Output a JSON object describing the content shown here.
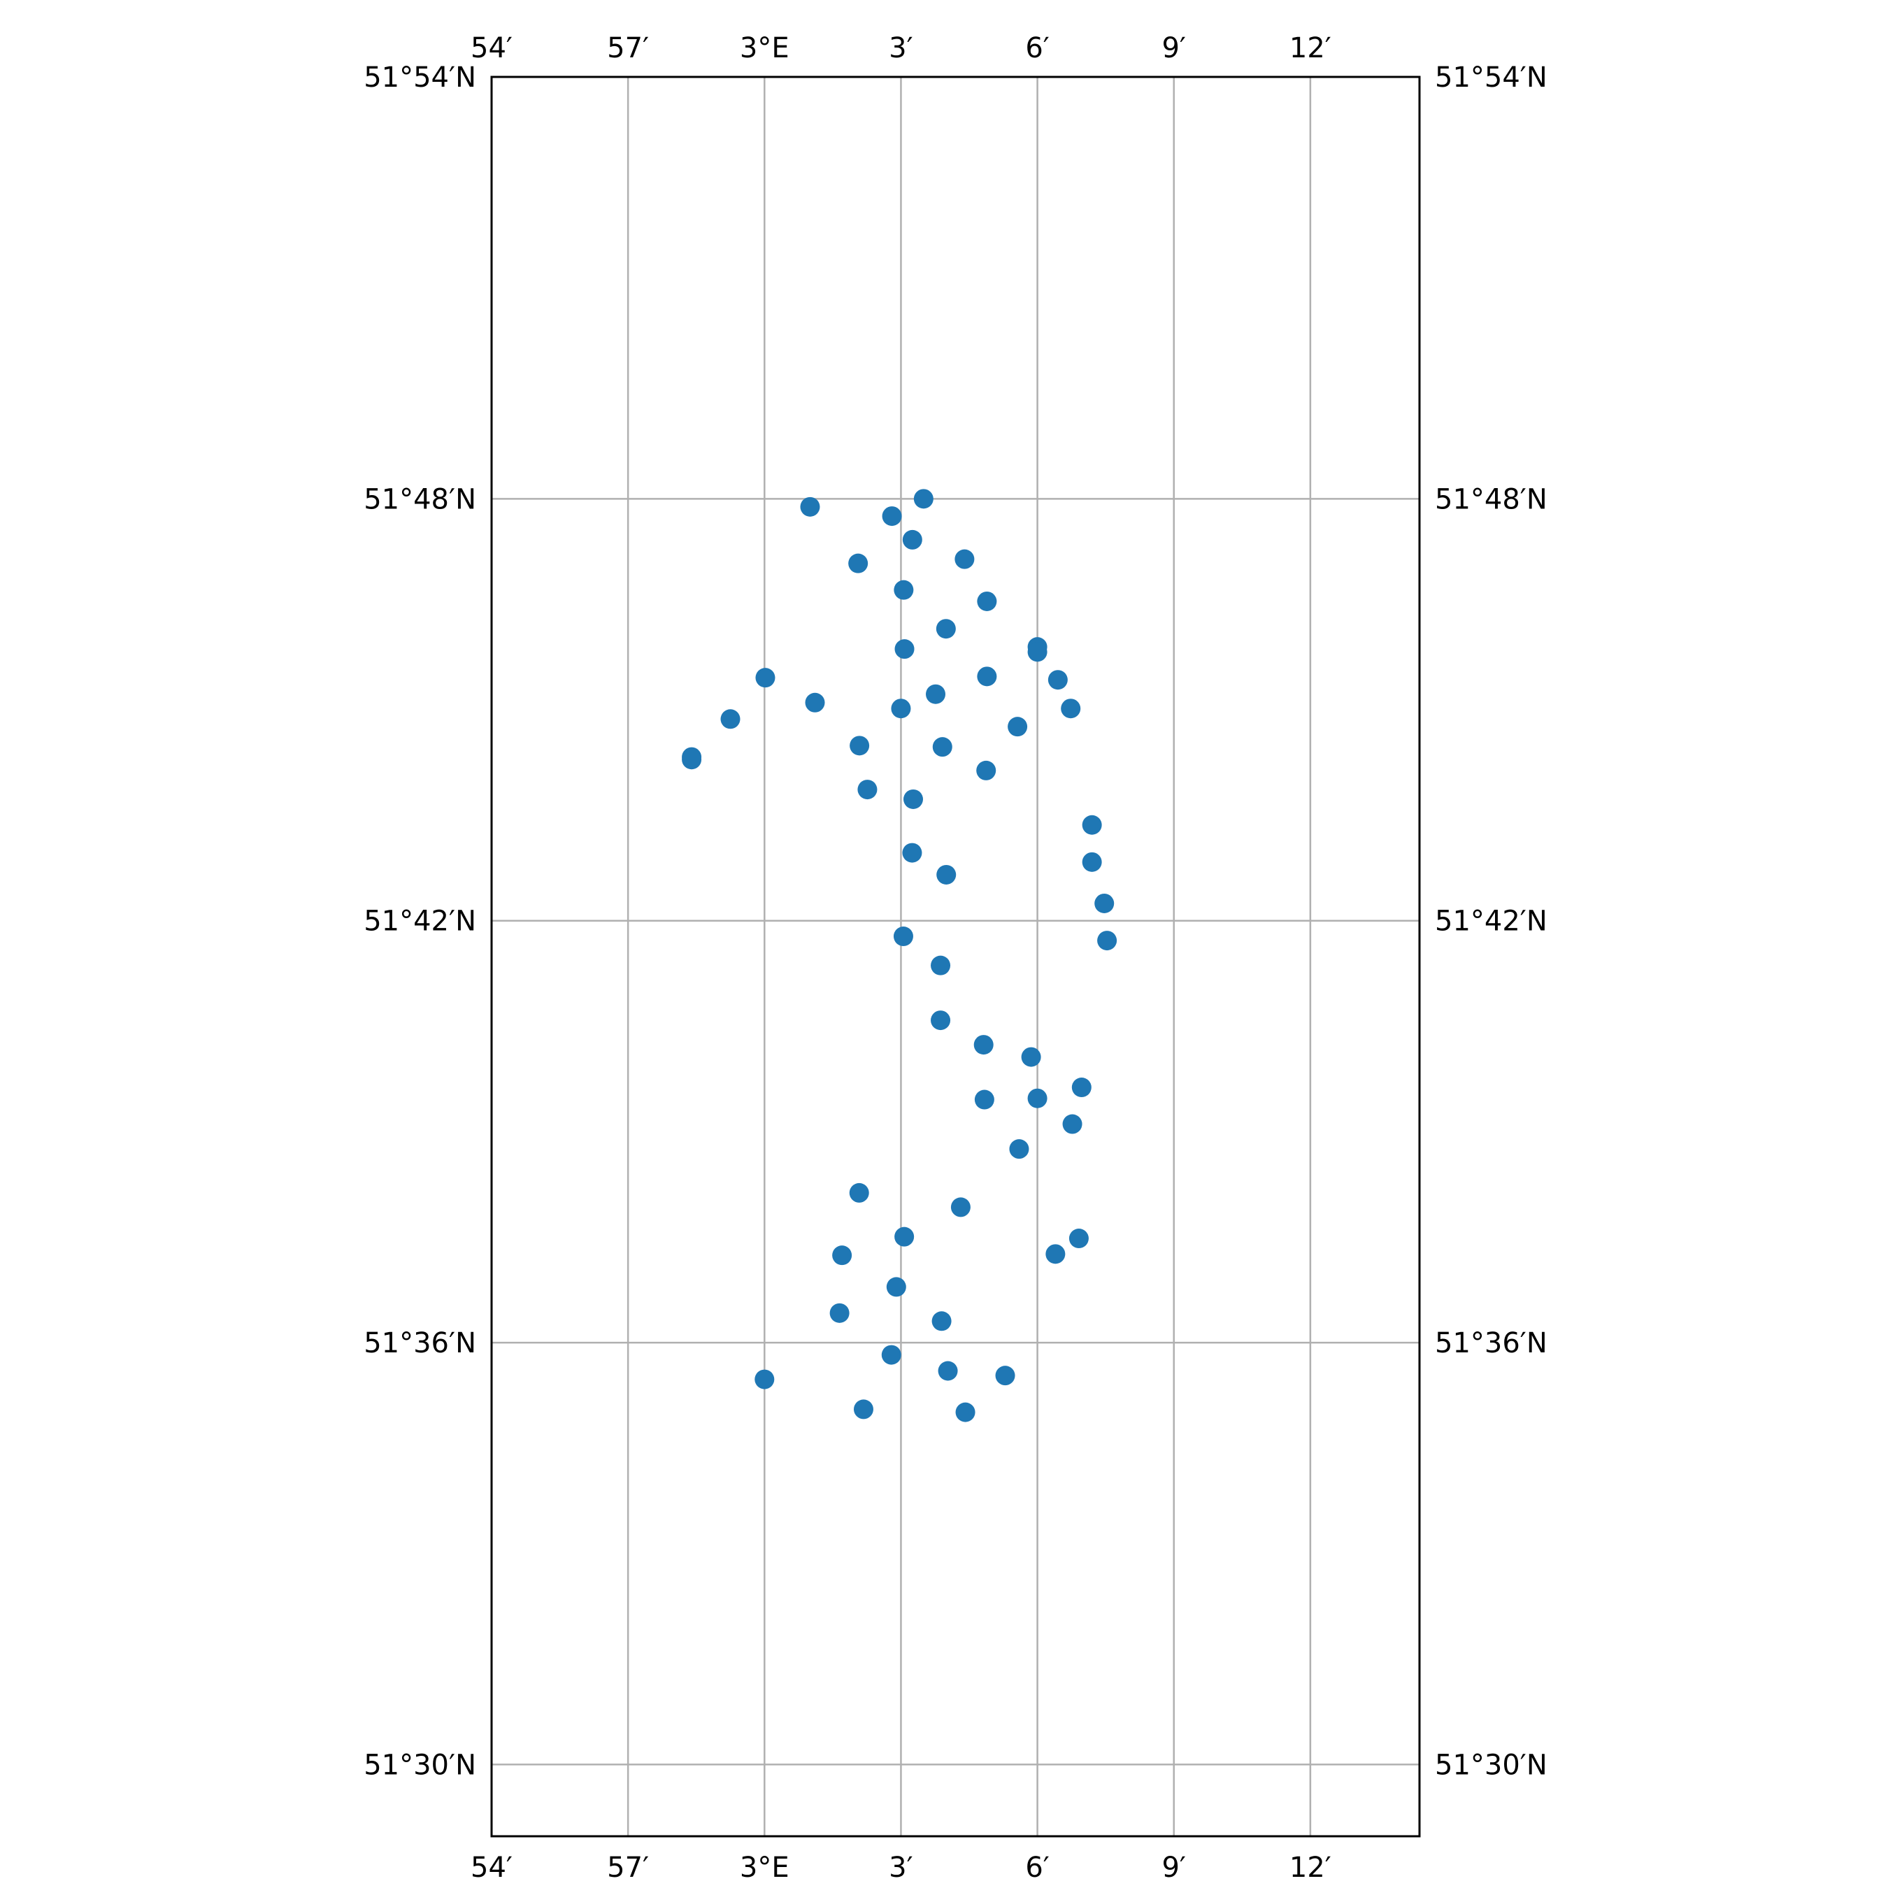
{
  "map": {
    "projection": "PlateCarree",
    "extent": {
      "lon_min": 2.9,
      "lon_max": 3.24,
      "lat_min": 51.483,
      "lat_max": 51.9
    },
    "gridlines": true,
    "grid_color": "#b0b0b0",
    "marker_color": "#1f77b4",
    "lon_ticks": [
      {
        "value": 2.9,
        "label": "54′"
      },
      {
        "value": 2.95,
        "label": "57′"
      },
      {
        "value": 3.0,
        "label": "3°E"
      },
      {
        "value": 3.05,
        "label": "3′"
      },
      {
        "value": 3.1,
        "label": "6′"
      },
      {
        "value": 3.15,
        "label": "9′"
      },
      {
        "value": 3.2,
        "label": "12′"
      }
    ],
    "lat_ticks": [
      {
        "value": 51.9,
        "label": "51°54′N"
      },
      {
        "value": 51.8,
        "label": "51°48′N"
      },
      {
        "value": 51.7,
        "label": "51°42′N"
      },
      {
        "value": 51.6,
        "label": "51°36′N"
      },
      {
        "value": 51.5,
        "label": "51°30′N"
      }
    ],
    "points": [
      [
        3.0167,
        51.7981
      ],
      [
        3.0467,
        51.7959
      ],
      [
        3.0583,
        51.8
      ],
      [
        3.0542,
        51.7903
      ],
      [
        3.0343,
        51.7847
      ],
      [
        3.0733,
        51.7857
      ],
      [
        3.051,
        51.7784
      ],
      [
        3.0815,
        51.7757
      ],
      [
        3.0665,
        51.7692
      ],
      [
        3.0513,
        51.7644
      ],
      [
        3.1,
        51.7649
      ],
      [
        3.1,
        51.7637
      ],
      [
        3.0003,
        51.7576
      ],
      [
        3.0815,
        51.7579
      ],
      [
        3.1075,
        51.7571
      ],
      [
        3.0185,
        51.7517
      ],
      [
        3.05,
        51.7503
      ],
      [
        3.0627,
        51.7537
      ],
      [
        3.1122,
        51.7503
      ],
      [
        2.9875,
        51.7478
      ],
      [
        3.0927,
        51.746
      ],
      [
        3.0348,
        51.7415
      ],
      [
        3.0652,
        51.7412
      ],
      [
        2.9733,
        51.7388
      ],
      [
        2.9733,
        51.7382
      ],
      [
        3.0812,
        51.7356
      ],
      [
        3.0377,
        51.7311
      ],
      [
        3.0545,
        51.7288
      ],
      [
        3.12,
        51.7227
      ],
      [
        3.0541,
        51.7161
      ],
      [
        3.12,
        51.7139
      ],
      [
        3.0666,
        51.7109
      ],
      [
        3.1245,
        51.7041
      ],
      [
        3.0509,
        51.6963
      ],
      [
        3.1255,
        51.6953
      ],
      [
        3.0645,
        51.6894
      ],
      [
        3.0645,
        51.6764
      ],
      [
        3.0803,
        51.6706
      ],
      [
        3.0977,
        51.6677
      ],
      [
        3.1162,
        51.6605
      ],
      [
        3.0806,
        51.6576
      ],
      [
        3.1,
        51.6579
      ],
      [
        3.1128,
        51.6518
      ],
      [
        3.0933,
        51.6459
      ],
      [
        3.0347,
        51.6355
      ],
      [
        3.0719,
        51.6321
      ],
      [
        3.0512,
        51.6251
      ],
      [
        3.1152,
        51.6247
      ],
      [
        3.0284,
        51.6207
      ],
      [
        3.1066,
        51.621
      ],
      [
        3.0483,
        51.6132
      ],
      [
        3.0275,
        51.607
      ],
      [
        3.0649,
        51.6051
      ],
      [
        3.0465,
        51.5971
      ],
      [
        3.0672,
        51.5933
      ],
      [
        3.0882,
        51.5922
      ],
      [
        3.0,
        51.5913
      ],
      [
        3.0363,
        51.5842
      ],
      [
        3.0736,
        51.5835
      ]
    ]
  }
}
